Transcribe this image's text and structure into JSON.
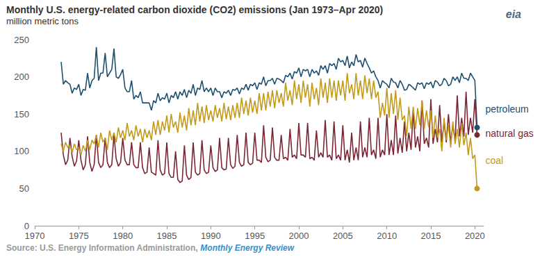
{
  "chart_data": {
    "type": "line",
    "title": "Monthly U.S. energy-related carbon dioxide (CO2) emissions (Jan 1973–Apr 2020)",
    "subtitle": "million metric tons",
    "source": "Source: U.S. Energy Information Administration,",
    "source_link": "Monthly Energy Review",
    "logo": "eia",
    "x": [
      1973,
      1973.25,
      1973.5,
      1973.75,
      1974,
      1974.25,
      1974.5,
      1974.75,
      1975,
      1975.25,
      1975.5,
      1975.75,
      1976,
      1976.25,
      1976.5,
      1976.75,
      1977,
      1977.25,
      1977.5,
      1977.75,
      1978,
      1978.25,
      1978.5,
      1978.75,
      1979,
      1979.25,
      1979.5,
      1979.75,
      1980,
      1980.25,
      1980.5,
      1980.75,
      1981,
      1981.25,
      1981.5,
      1981.75,
      1982,
      1982.25,
      1982.5,
      1982.75,
      1983,
      1983.25,
      1983.5,
      1983.75,
      1984,
      1984.25,
      1984.5,
      1984.75,
      1985,
      1985.25,
      1985.5,
      1985.75,
      1986,
      1986.25,
      1986.5,
      1986.75,
      1987,
      1987.25,
      1987.5,
      1987.75,
      1988,
      1988.25,
      1988.5,
      1988.75,
      1989,
      1989.25,
      1989.5,
      1989.75,
      1990,
      1990.25,
      1990.5,
      1990.75,
      1991,
      1991.25,
      1991.5,
      1991.75,
      1992,
      1992.25,
      1992.5,
      1992.75,
      1993,
      1993.25,
      1993.5,
      1993.75,
      1994,
      1994.25,
      1994.5,
      1994.75,
      1995,
      1995.25,
      1995.5,
      1995.75,
      1996,
      1996.25,
      1996.5,
      1996.75,
      1997,
      1997.25,
      1997.5,
      1997.75,
      1998,
      1998.25,
      1998.5,
      1998.75,
      1999,
      1999.25,
      1999.5,
      1999.75,
      2000,
      2000.25,
      2000.5,
      2000.75,
      2001,
      2001.25,
      2001.5,
      2001.75,
      2002,
      2002.25,
      2002.5,
      2002.75,
      2003,
      2003.25,
      2003.5,
      2003.75,
      2004,
      2004.25,
      2004.5,
      2004.75,
      2005,
      2005.25,
      2005.5,
      2005.75,
      2006,
      2006.25,
      2006.5,
      2006.75,
      2007,
      2007.25,
      2007.5,
      2007.75,
      2008,
      2008.25,
      2008.5,
      2008.75,
      2009,
      2009.25,
      2009.5,
      2009.75,
      2010,
      2010.25,
      2010.5,
      2010.75,
      2011,
      2011.25,
      2011.5,
      2011.75,
      2012,
      2012.25,
      2012.5,
      2012.75,
      2013,
      2013.25,
      2013.5,
      2013.75,
      2014,
      2014.25,
      2014.5,
      2014.75,
      2015,
      2015.25,
      2015.5,
      2015.75,
      2016,
      2016.25,
      2016.5,
      2016.75,
      2017,
      2017.25,
      2017.5,
      2017.75,
      2018,
      2018.25,
      2018.5,
      2018.75,
      2019,
      2019.25,
      2019.5,
      2019.75,
      2020,
      2020.25
    ],
    "series": [
      {
        "name": "petroleum",
        "color": "#1d4f6e",
        "values": [
          220,
          190,
          195,
          192,
          190,
          178,
          185,
          183,
          190,
          175,
          183,
          182,
          205,
          185,
          195,
          198,
          240,
          195,
          205,
          205,
          232,
          200,
          205,
          210,
          238,
          200,
          198,
          203,
          210,
          185,
          180,
          180,
          195,
          170,
          175,
          172,
          180,
          165,
          165,
          165,
          165,
          155,
          168,
          165,
          178,
          168,
          172,
          170,
          178,
          165,
          175,
          172,
          180,
          170,
          180,
          175,
          183,
          172,
          182,
          178,
          190,
          175,
          185,
          183,
          195,
          180,
          185,
          180,
          185,
          175,
          185,
          180,
          180,
          172,
          180,
          178,
          182,
          175,
          183,
          182,
          185,
          177,
          185,
          183,
          190,
          182,
          190,
          188,
          192,
          183,
          192,
          190,
          200,
          188,
          195,
          195,
          198,
          190,
          198,
          197,
          195,
          192,
          202,
          200,
          205,
          197,
          207,
          205,
          212,
          200,
          210,
          208,
          210,
          200,
          210,
          205,
          208,
          202,
          215,
          210,
          215,
          205,
          218,
          215,
          218,
          210,
          225,
          220,
          222,
          215,
          228,
          212,
          220,
          215,
          230,
          220,
          222,
          213,
          225,
          218,
          212,
          205,
          208,
          200,
          195,
          185,
          195,
          192,
          190,
          185,
          198,
          193,
          192,
          185,
          195,
          190,
          182,
          183,
          190,
          188,
          185,
          182,
          192,
          190,
          192,
          184,
          192,
          190,
          193,
          185,
          195,
          193,
          188,
          190,
          198,
          195,
          188,
          190,
          200,
          195,
          200,
          192,
          205,
          198,
          198,
          195,
          205,
          200,
          195,
          132
        ]
      },
      {
        "name": "natural gas",
        "color": "#7b2535",
        "values": [
          125,
          95,
          82,
          88,
          118,
          93,
          80,
          87,
          115,
          88,
          75,
          82,
          120,
          85,
          73,
          82,
          122,
          85,
          78,
          82,
          118,
          85,
          78,
          82,
          122,
          90,
          80,
          85,
          118,
          88,
          82,
          82,
          112,
          82,
          78,
          78,
          112,
          78,
          70,
          72,
          105,
          72,
          70,
          68,
          115,
          75,
          68,
          70,
          112,
          70,
          65,
          65,
          100,
          62,
          58,
          60,
          108,
          68,
          62,
          65,
          112,
          72,
          68,
          70,
          115,
          75,
          70,
          72,
          108,
          78,
          73,
          75,
          118,
          78,
          75,
          76,
          118,
          82,
          77,
          80,
          122,
          85,
          80,
          82,
          125,
          85,
          82,
          84,
          125,
          88,
          88,
          85,
          135,
          92,
          86,
          88,
          132,
          92,
          88,
          88,
          122,
          90,
          92,
          88,
          130,
          92,
          95,
          90,
          138,
          95,
          95,
          92,
          138,
          90,
          92,
          88,
          128,
          92,
          98,
          92,
          142,
          92,
          95,
          88,
          140,
          90,
          95,
          88,
          135,
          88,
          102,
          85,
          125,
          88,
          105,
          88,
          140,
          92,
          105,
          92,
          145,
          95,
          102,
          90,
          145,
          92,
          102,
          95,
          150,
          95,
          115,
          95,
          148,
          97,
          118,
          98,
          140,
          100,
          125,
          102,
          155,
          105,
          120,
          100,
          168,
          110,
          118,
          105,
          170,
          110,
          130,
          112,
          162,
          112,
          140,
          112,
          150,
          112,
          135,
          115,
          175,
          120,
          145,
          120,
          180,
          122,
          145,
          125,
          170,
          122
        ]
      },
      {
        "name": "coal",
        "color": "#c39a1b",
        "values": [
          110,
          100,
          112,
          105,
          108,
          98,
          110,
          102,
          105,
          95,
          108,
          100,
          115,
          102,
          115,
          110,
          122,
          105,
          125,
          112,
          118,
          102,
          128,
          115,
          125,
          112,
          132,
          118,
          128,
          115,
          138,
          120,
          128,
          115,
          135,
          120,
          130,
          112,
          130,
          118,
          128,
          115,
          140,
          122,
          142,
          122,
          140,
          128,
          148,
          125,
          150,
          132,
          140,
          125,
          152,
          132,
          148,
          128,
          158,
          135,
          155,
          135,
          165,
          140,
          160,
          138,
          162,
          142,
          155,
          140,
          162,
          145,
          158,
          140,
          165,
          143,
          160,
          142,
          162,
          145,
          165,
          145,
          172,
          150,
          168,
          148,
          172,
          152,
          168,
          150,
          178,
          155,
          178,
          155,
          180,
          160,
          182,
          158,
          182,
          165,
          178,
          160,
          192,
          168,
          182,
          162,
          195,
          170,
          190,
          165,
          195,
          172,
          190,
          160,
          192,
          170,
          185,
          162,
          198,
          172,
          192,
          165,
          198,
          172,
          195,
          168,
          195,
          175,
          195,
          168,
          205,
          178,
          190,
          170,
          205,
          175,
          195,
          170,
          202,
          178,
          198,
          170,
          195,
          172,
          180,
          145,
          165,
          148,
          185,
          145,
          178,
          150,
          182,
          142,
          172,
          142,
          148,
          120,
          160,
          130,
          160,
          130,
          158,
          135,
          168,
          130,
          155,
          132,
          155,
          118,
          148,
          118,
          130,
          100,
          145,
          115,
          135,
          105,
          140,
          110,
          130,
          105,
          138,
          108,
          125,
          95,
          118,
          90,
          95,
          50
        ]
      }
    ],
    "xlim": [
      1970,
      2021
    ],
    "xticks": [
      1970,
      1975,
      1980,
      1985,
      1990,
      1995,
      2000,
      2005,
      2010,
      2015,
      2020
    ],
    "ylim": [
      0,
      250
    ],
    "yticks": [
      0,
      50,
      100,
      150,
      200,
      250
    ],
    "grid": false
  }
}
